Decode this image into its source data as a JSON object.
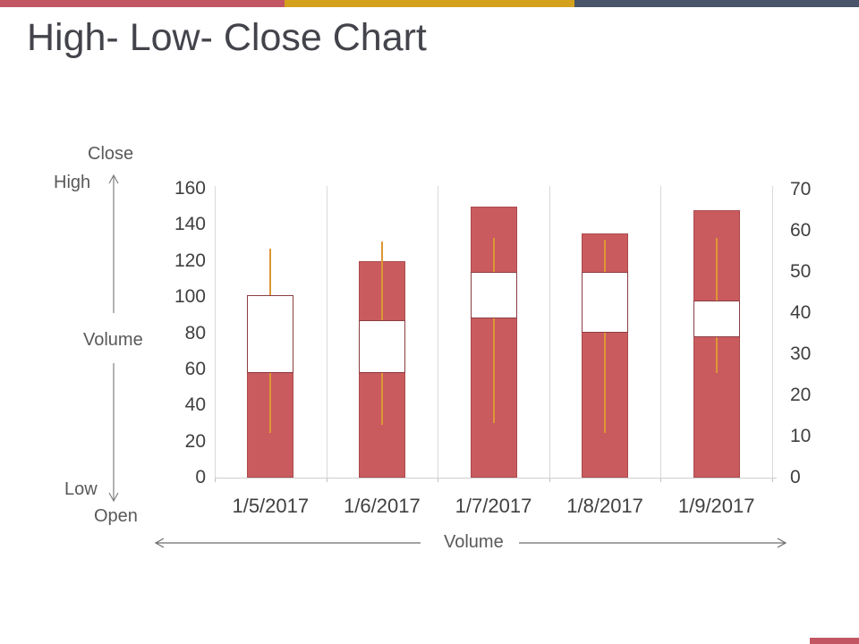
{
  "slide": {
    "title": "High- Low- Close Chart",
    "accent_colors": {
      "red": "#c25663",
      "gold": "#d4a11d",
      "slate": "#48556a"
    }
  },
  "diagram_labels": {
    "close": "Close",
    "high": "High",
    "volume_left": "Volume",
    "low": "Low",
    "open": "Open",
    "volume_bottom": "Volume"
  },
  "chart_data": {
    "type": "bar",
    "subtype": "volume-open-high-low-close stock chart (volume columns + open-close boxes + high-low whiskers)",
    "title": "",
    "categories": [
      "1/5/2017",
      "1/6/2017",
      "1/7/2017",
      "1/8/2017",
      "1/9/2017"
    ],
    "series": [
      {
        "name": "Volume",
        "role": "column",
        "values": [
          101,
          120,
          150,
          135,
          148
        ]
      },
      {
        "name": "Open",
        "role": "box-bottom",
        "values": [
          58,
          58,
          88,
          80,
          78
        ]
      },
      {
        "name": "Close",
        "role": "box-top",
        "values": [
          101,
          87,
          114,
          114,
          98
        ]
      },
      {
        "name": "High",
        "role": "whisker-top",
        "values": [
          127,
          131,
          133,
          132,
          133
        ]
      },
      {
        "name": "Low",
        "role": "whisker-bottom",
        "values": [
          25,
          29,
          30,
          25,
          58
        ]
      }
    ],
    "axis_left": {
      "min": 0,
      "max": 160,
      "step": 20,
      "tick_labels": [
        "0",
        "20",
        "40",
        "60",
        "80",
        "100",
        "120",
        "140",
        "160"
      ]
    },
    "axis_right": {
      "min": 0,
      "max": 70,
      "step": 10,
      "tick_labels": [
        "0",
        "10",
        "20",
        "30",
        "40",
        "50",
        "60",
        "70"
      ]
    },
    "grid": "vertical category-boundary gridlines only",
    "legend": "none",
    "colors": {
      "bar_fill": "#c95b5e",
      "bar_border": "#ab4a4e",
      "box_fill": "#ffffff",
      "box_border": "#8b3d42",
      "whisker": "#dd9734",
      "gridline": "#d9d9d9",
      "axis_text": "#404040"
    }
  }
}
